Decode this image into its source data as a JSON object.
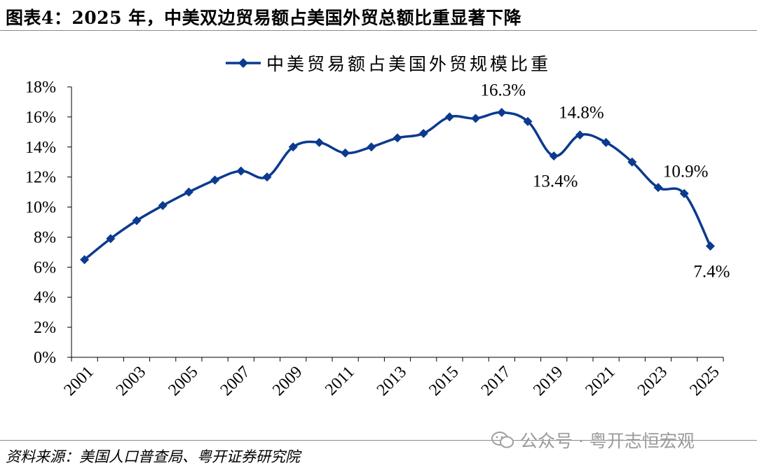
{
  "figure": {
    "title": "图表4：2025 年，中美双边贸易额占美国外贸总额比重显著下降",
    "source": "资料来源：美国人口普查局、粤开证券研究院",
    "watermark": "公众号 · 粤开志恒宏观"
  },
  "chart_data": {
    "type": "line",
    "title": "",
    "xlabel": "",
    "ylabel": "",
    "x": [
      2001,
      2002,
      2003,
      2004,
      2005,
      2006,
      2007,
      2008,
      2009,
      2010,
      2011,
      2012,
      2013,
      2014,
      2015,
      2016,
      2017,
      2018,
      2019,
      2020,
      2021,
      2022,
      2023,
      2024,
      2025
    ],
    "x_tick_labels": [
      "2001",
      "2003",
      "2005",
      "2007",
      "2009",
      "2011",
      "2013",
      "2015",
      "2017",
      "2019",
      "2021",
      "2023",
      "2025"
    ],
    "ylim": [
      0,
      18
    ],
    "y_tick_labels": [
      "0%",
      "2%",
      "4%",
      "6%",
      "8%",
      "10%",
      "12%",
      "14%",
      "16%",
      "18%"
    ],
    "series": [
      {
        "name": "中美贸易额占美国外贸规模比重",
        "color": "#0b3a8f",
        "marker": "diamond",
        "values": [
          6.5,
          7.9,
          9.1,
          10.1,
          11.0,
          11.8,
          12.4,
          12.0,
          14.0,
          14.3,
          13.6,
          14.0,
          14.6,
          14.9,
          16.0,
          15.9,
          16.3,
          15.7,
          13.4,
          14.8,
          14.3,
          13.0,
          11.3,
          10.9,
          7.4
        ]
      }
    ],
    "annotations": [
      {
        "x": 2017,
        "y": 16.3,
        "text": "16.3%",
        "pos": "above"
      },
      {
        "x": 2019,
        "y": 13.4,
        "text": "13.4%",
        "pos": "below"
      },
      {
        "x": 2020,
        "y": 14.8,
        "text": "14.8%",
        "pos": "above"
      },
      {
        "x": 2024,
        "y": 10.9,
        "text": "10.9%",
        "pos": "above"
      },
      {
        "x": 2025,
        "y": 7.4,
        "text": "7.4%",
        "pos": "below"
      }
    ],
    "legend": "top-center",
    "grid": false
  }
}
